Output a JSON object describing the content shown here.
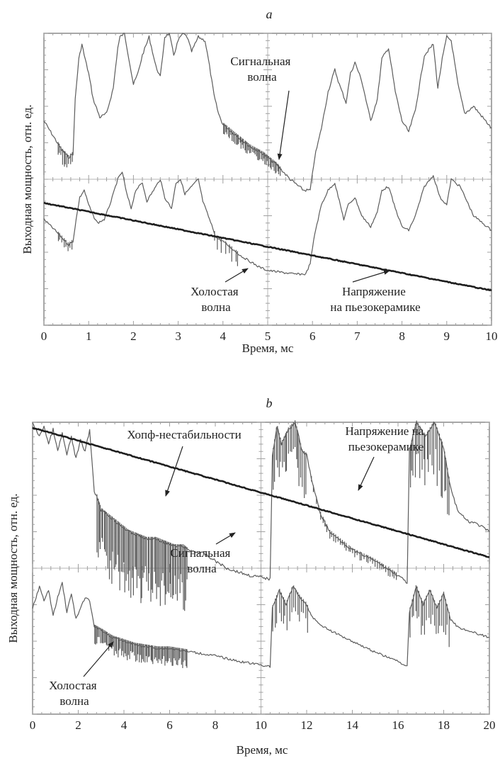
{
  "figure": {
    "panels": [
      {
        "letter": "a",
        "xlabel": "Время, мс",
        "ylabel": "Выходная мощность, отн. ед.",
        "annotations": [
          {
            "lines": [
              "Сигнальная",
              "волна"
            ]
          },
          {
            "lines": [
              "Холостая",
              "волна"
            ]
          },
          {
            "lines": [
              "Напряжение",
              "на пьезокерамике"
            ]
          }
        ]
      },
      {
        "letter": "b",
        "xlabel": "Время, мс",
        "ylabel": "Выходная мощность, отн. ед.",
        "annotations": [
          {
            "lines": [
              "Хопф-нестабильности"
            ]
          },
          {
            "lines": [
              "Напряжение на",
              "пьезокерамике"
            ]
          },
          {
            "lines": [
              "Сигнальная",
              "волна"
            ]
          },
          {
            "lines": [
              "Холостая",
              "волна"
            ]
          }
        ]
      }
    ]
  },
  "colors": {
    "frame": "#8a8a8a",
    "signal_traces": "#5c5c5c",
    "voltage_trace": "#1e1e1e",
    "background": "#ffffff"
  },
  "chart_data": [
    {
      "type": "line",
      "xlabel": "Время, мс",
      "ylabel": "Выходная мощность, отн. ед.",
      "xlim": [
        0,
        10
      ],
      "ylim": [
        0,
        8
      ],
      "x_ticks": [
        0,
        1,
        2,
        3,
        4,
        5,
        6,
        7,
        8,
        9,
        10
      ],
      "grid": "center crosshair axes with minor ticks",
      "series": [
        {
          "name": "Сигнальная волна",
          "x": [
            0,
            0.25,
            0.4,
            0.55,
            0.65,
            0.7,
            0.78,
            0.85,
            0.9,
            1.0,
            1.1,
            1.25,
            1.4,
            1.55,
            1.65,
            1.7,
            1.8,
            1.9,
            2.0,
            2.1,
            2.2,
            2.35,
            2.5,
            2.6,
            2.7,
            2.8,
            2.9,
            3.0,
            3.1,
            3.2,
            3.3,
            3.45,
            3.6,
            3.7,
            3.8,
            3.9,
            4.0,
            4.3,
            4.6,
            4.9,
            5.2,
            5.5,
            5.8,
            5.95,
            6.05,
            6.2,
            6.35,
            6.5,
            6.6,
            6.75,
            6.85,
            6.95,
            7.1,
            7.3,
            7.45,
            7.55,
            7.7,
            7.85,
            8.0,
            8.15,
            8.3,
            8.5,
            8.7,
            8.8,
            8.9,
            9.0,
            9.1,
            9.25,
            9.4,
            9.6,
            9.8,
            10.0
          ],
          "y": [
            5.6,
            5.1,
            4.8,
            4.6,
            4.7,
            6.2,
            7.3,
            7.7,
            7.4,
            6.9,
            6.2,
            5.7,
            5.8,
            6.5,
            7.6,
            7.9,
            8.0,
            7.3,
            6.6,
            6.9,
            7.4,
            7.9,
            7.1,
            6.8,
            7.9,
            8.0,
            7.4,
            7.8,
            8.0,
            7.9,
            7.5,
            7.9,
            7.8,
            7.1,
            6.3,
            5.8,
            5.5,
            5.2,
            4.9,
            4.7,
            4.4,
            4.0,
            3.7,
            3.7,
            4.6,
            5.4,
            6.4,
            7.0,
            6.6,
            6.1,
            6.9,
            7.2,
            6.7,
            5.6,
            6.2,
            7.3,
            7.6,
            6.4,
            5.6,
            5.3,
            5.9,
            7.4,
            7.7,
            6.5,
            7.3,
            7.9,
            7.8,
            6.6,
            5.8,
            6.0,
            5.7,
            5.4
          ]
        },
        {
          "name": "Холостая волна",
          "x": [
            0,
            0.25,
            0.4,
            0.55,
            0.65,
            0.72,
            0.8,
            0.9,
            1.0,
            1.1,
            1.2,
            1.35,
            1.5,
            1.65,
            1.75,
            1.85,
            1.95,
            2.05,
            2.2,
            2.3,
            2.45,
            2.6,
            2.7,
            2.85,
            2.95,
            3.05,
            3.15,
            3.3,
            3.45,
            3.55,
            3.7,
            3.85,
            4.0,
            4.2,
            4.4,
            4.6,
            4.8,
            5.0,
            5.3,
            5.6,
            5.85,
            5.95,
            6.05,
            6.2,
            6.35,
            6.5,
            6.6,
            6.7,
            6.8,
            6.95,
            7.1,
            7.3,
            7.45,
            7.55,
            7.7,
            7.85,
            8.0,
            8.15,
            8.3,
            8.5,
            8.7,
            8.85,
            9.0,
            9.1,
            9.3,
            9.45,
            9.6,
            9.8,
            10.0
          ],
          "y": [
            2.9,
            2.6,
            2.4,
            2.2,
            2.3,
            2.9,
            3.5,
            3.7,
            3.3,
            3.0,
            2.8,
            2.9,
            3.4,
            4.0,
            4.2,
            3.6,
            3.2,
            3.7,
            3.9,
            3.4,
            3.7,
            4.0,
            3.5,
            3.2,
            3.9,
            4.0,
            3.6,
            3.8,
            4.0,
            3.4,
            2.9,
            2.4,
            2.3,
            2.1,
            1.9,
            1.75,
            1.6,
            1.5,
            1.45,
            1.4,
            1.4,
            1.7,
            2.5,
            3.3,
            3.7,
            3.9,
            3.4,
            2.9,
            3.3,
            3.5,
            3.0,
            2.7,
            3.1,
            3.7,
            3.8,
            3.2,
            2.7,
            2.6,
            3.0,
            3.8,
            4.1,
            3.5,
            3.3,
            4.0,
            3.8,
            3.4,
            3.0,
            2.8,
            2.6
          ]
        },
        {
          "name": "Напряжение на пьезокерамике",
          "x": [
            0,
            10
          ],
          "y": [
            3.35,
            0.95
          ]
        }
      ]
    },
    {
      "type": "line",
      "xlabel": "Время, мс",
      "ylabel": "Выходная мощность, отн. ед.",
      "xlim": [
        0,
        20
      ],
      "ylim": [
        0,
        8
      ],
      "x_ticks": [
        0,
        2,
        4,
        6,
        8,
        10,
        12,
        14,
        16,
        18,
        20
      ],
      "grid": "center crosshair axes with minor ticks",
      "series": [
        {
          "name": "Сигнальная волна",
          "x": [
            0,
            0.3,
            0.5,
            0.7,
            0.9,
            1.1,
            1.3,
            1.5,
            1.7,
            1.9,
            2.1,
            2.3,
            2.5,
            2.7,
            2.8,
            3.0,
            3.4,
            3.8,
            4.2,
            4.6,
            5.0,
            5.4,
            5.8,
            6.2,
            6.6,
            6.8,
            7.5,
            8.0,
            8.5,
            9.0,
            9.5,
            10.0,
            10.4,
            10.5,
            10.7,
            10.9,
            11.2,
            11.5,
            11.8,
            12.0,
            12.3,
            12.6,
            13.0,
            14.0,
            15.0,
            16.0,
            16.4,
            16.5,
            16.8,
            17.2,
            17.6,
            18.0,
            18.3,
            18.6,
            19.0,
            19.5,
            20.0
          ],
          "y": [
            8.0,
            7.6,
            7.9,
            7.4,
            7.8,
            7.2,
            7.7,
            7.1,
            7.6,
            7.0,
            7.5,
            7.2,
            7.8,
            6.1,
            6.0,
            5.6,
            5.4,
            5.2,
            5.0,
            4.9,
            4.8,
            4.8,
            4.7,
            4.6,
            4.6,
            4.5,
            4.4,
            4.2,
            4.0,
            3.9,
            3.8,
            3.75,
            3.7,
            7.1,
            7.9,
            7.4,
            7.8,
            8.0,
            7.2,
            7.1,
            6.2,
            5.5,
            5.0,
            4.5,
            4.2,
            3.8,
            3.6,
            7.2,
            8.0,
            7.6,
            8.0,
            7.3,
            6.2,
            5.6,
            5.3,
            5.2,
            5.0
          ]
        },
        {
          "name": "Холостая волна",
          "x": [
            0,
            0.3,
            0.5,
            0.7,
            0.9,
            1.1,
            1.3,
            1.5,
            1.7,
            1.9,
            2.1,
            2.3,
            2.5,
            2.7,
            3.0,
            3.5,
            4.0,
            4.5,
            5.0,
            5.5,
            6.0,
            6.5,
            7.0,
            8.0,
            9.0,
            10.0,
            10.4,
            10.5,
            10.8,
            11.1,
            11.4,
            11.7,
            12.0,
            12.2,
            12.5,
            13.0,
            14.0,
            15.0,
            16.0,
            16.4,
            16.5,
            16.8,
            17.1,
            17.4,
            17.7,
            18.0,
            18.3,
            18.6,
            19.0,
            19.5,
            20.0
          ],
          "y": [
            2.9,
            3.5,
            3.1,
            3.4,
            2.7,
            3.2,
            3.6,
            2.8,
            3.3,
            2.6,
            2.9,
            3.2,
            3.1,
            2.4,
            2.3,
            2.1,
            2.0,
            1.9,
            1.85,
            1.8,
            1.8,
            1.75,
            1.7,
            1.6,
            1.45,
            1.35,
            1.3,
            2.9,
            3.4,
            3.0,
            3.5,
            3.2,
            3.0,
            2.7,
            2.5,
            2.3,
            2.0,
            1.7,
            1.45,
            1.3,
            2.8,
            3.5,
            3.0,
            3.4,
            2.9,
            3.3,
            2.6,
            2.4,
            2.3,
            2.2,
            2.1
          ]
        },
        {
          "name": "Напряжение на пьезокерамике",
          "x": [
            0,
            20
          ],
          "y": [
            7.85,
            4.3
          ]
        }
      ]
    }
  ]
}
